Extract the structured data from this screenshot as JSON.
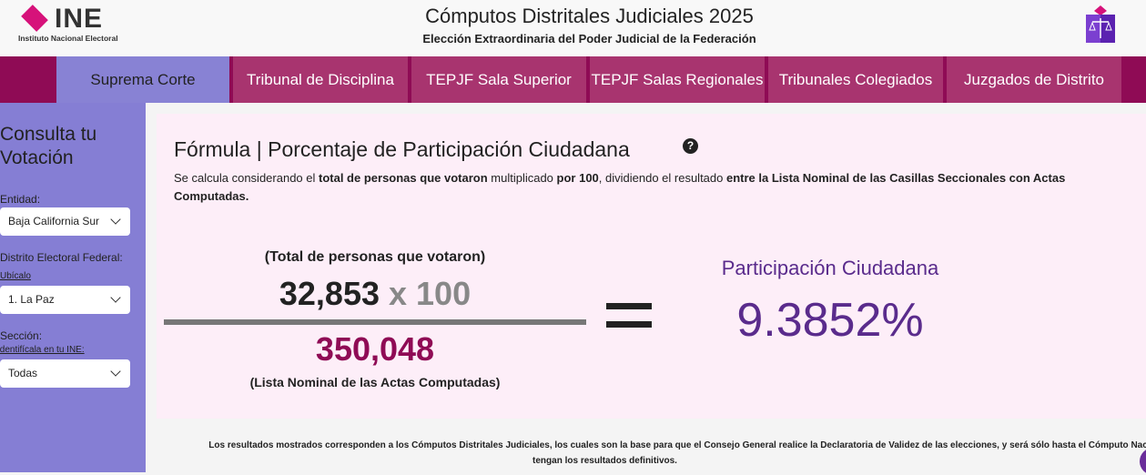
{
  "header": {
    "logo_text": "INE",
    "logo_subtitle": "Instituto Nacional Electoral",
    "title": "Cómputos Distritales Judiciales 2025",
    "subtitle": "Elección Extraordinaria del Poder Judicial de la Federación"
  },
  "nav": {
    "tabs": [
      {
        "label": "Suprema Corte",
        "active": true
      },
      {
        "label": "Tribunal de Disciplina"
      },
      {
        "label": "TEPJF Sala Superior"
      },
      {
        "label": "TEPJF Salas Regionales"
      },
      {
        "label": "Tribunales Colegiados"
      },
      {
        "label": "Juzgados de Distrito"
      }
    ]
  },
  "sidebar": {
    "title": "Consulta tu Votación",
    "entidad_label": "Entidad:",
    "entidad_value": "Baja California Sur",
    "distrito_label": "Distrito Electoral Federal:",
    "distrito_link": "Ubícalo",
    "distrito_value": "1. La Paz",
    "seccion_label": "Sección:",
    "seccion_link": "Identifícala en tu INE:",
    "seccion_value": "Todas"
  },
  "formula": {
    "title": "Fórmula | Porcentaje de Participación Ciudadana",
    "help": "?",
    "desc_1": "Se calcula considerando el ",
    "desc_2": "total de personas que votaron",
    "desc_3": " multiplicado ",
    "desc_4": "por 100",
    "desc_5": ", dividiendo el resultado ",
    "desc_6": "entre la Lista Nominal de las Casillas Seccionales con Actas Computadas.",
    "numerator_label": "(Total de personas que votaron)",
    "votes": "32,853",
    "times": "x 100",
    "denominator": "350,048",
    "denominator_label": "(Lista Nominal de las Actas Computadas)",
    "result_label": "Participación Ciudadana",
    "result_value": "9.3852%"
  },
  "footer": {
    "line1": "Los resultados mostrados corresponden a los Cómputos Distritales Judiciales, los cuales son la base para que el Consejo General realice la Declaratoria de Validez de las elecciones, y será sólo hasta el Cómputo Nacio",
    "line2": "tengan los resultados definitivos."
  }
}
